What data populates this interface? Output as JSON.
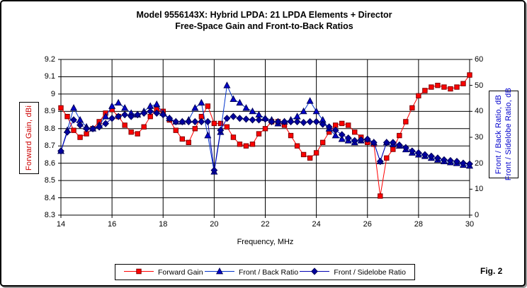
{
  "window": {
    "fig_label": "Fig. 2"
  },
  "chart_data": {
    "type": "line",
    "title": "Model 9556143X:  Hybrid LPDA:  21 LPDA Elements + Director",
    "subtitle": "Free-Space Gain and Front-to-Back Ratios",
    "xlabel": "Frequency, MHz",
    "ylabel_left": "Forward Gain,  dBi",
    "ylabel_right_line1": "Front / Back Ratio, dB",
    "ylabel_right_line2": "Front / Sidelobe Ratio, dB",
    "x_range": [
      14,
      30
    ],
    "y_left_range": [
      8.3,
      9.2
    ],
    "y_right_range": [
      0,
      60
    ],
    "x_ticks": [
      "14",
      "16",
      "18",
      "20",
      "22",
      "24",
      "26",
      "28",
      "30"
    ],
    "y_left_ticks": [
      "9.2",
      "9.1",
      "9",
      "8.9",
      "8.8",
      "8.7",
      "8.6",
      "8.5",
      "8.4",
      "8.3"
    ],
    "y_right_ticks": [
      "60",
      "50",
      "40",
      "30",
      "20",
      "10",
      "0"
    ],
    "grid": true,
    "legend_position": "bottom",
    "x": [
      14,
      14.25,
      14.5,
      14.75,
      15,
      15.25,
      15.5,
      15.75,
      16,
      16.25,
      16.5,
      16.75,
      17,
      17.25,
      17.5,
      17.75,
      18,
      18.25,
      18.5,
      18.75,
      19,
      19.25,
      19.5,
      19.75,
      20,
      20.25,
      20.5,
      20.75,
      21,
      21.25,
      21.5,
      21.75,
      22,
      22.25,
      22.5,
      22.75,
      23,
      23.25,
      23.5,
      23.75,
      24,
      24.25,
      24.5,
      24.75,
      25,
      25.25,
      25.5,
      25.75,
      26,
      26.25,
      26.5,
      26.75,
      27,
      27.25,
      27.5,
      27.75,
      28,
      28.25,
      28.5,
      28.75,
      29,
      29.25,
      29.5,
      29.75,
      30
    ],
    "series": [
      {
        "name": "Forward Gain",
        "axis": "left",
        "marker": "square",
        "line_color": "#ff0000",
        "fill_color": "#ff0000",
        "edge_color": "#7f0000",
        "values": [
          8.92,
          8.87,
          8.79,
          8.75,
          8.77,
          8.8,
          8.84,
          8.89,
          8.91,
          8.87,
          8.82,
          8.78,
          8.77,
          8.81,
          8.87,
          8.91,
          8.9,
          8.85,
          8.79,
          8.74,
          8.72,
          8.8,
          8.87,
          8.93,
          8.83,
          8.83,
          8.81,
          8.75,
          8.71,
          8.7,
          8.71,
          8.77,
          8.8,
          8.84,
          8.84,
          8.82,
          8.76,
          8.7,
          8.65,
          8.63,
          8.66,
          8.72,
          8.78,
          8.82,
          8.83,
          8.82,
          8.78,
          8.75,
          8.72,
          8.71,
          8.41,
          8.63,
          8.68,
          8.76,
          8.84,
          8.92,
          8.99,
          9.02,
          9.04,
          9.05,
          9.04,
          9.03,
          9.04,
          9.06,
          9.11
        ]
      },
      {
        "name": "Front / Back Ratio",
        "axis": "right",
        "marker": "triangle",
        "line_color": "#0033cc",
        "fill_color": "#0000cc",
        "edge_color": "#000055",
        "values": [
          24.7,
          32.7,
          41.3,
          36.7,
          34.0,
          33.3,
          34.7,
          38.0,
          42.0,
          43.3,
          41.3,
          39.3,
          38.7,
          40.0,
          42.0,
          42.7,
          39.3,
          37.3,
          36.0,
          36.0,
          36.7,
          41.3,
          43.3,
          30.7,
          16.7,
          32.0,
          50.0,
          44.7,
          43.3,
          41.3,
          40.0,
          38.7,
          37.3,
          36.7,
          35.3,
          36.0,
          36.7,
          38.0,
          40.0,
          44.0,
          40.0,
          36.7,
          33.3,
          30.7,
          29.3,
          28.7,
          28.0,
          28.7,
          29.3,
          28.0,
          20.7,
          28.0,
          27.3,
          26.7,
          25.3,
          24.0,
          23.3,
          22.7,
          22.0,
          21.3,
          20.7,
          20.3,
          20.0,
          19.3,
          19.0
        ]
      },
      {
        "name": "Front / Sidelobe Ratio",
        "axis": "right",
        "marker": "diamond",
        "line_color": "#0000b3",
        "fill_color": "#0000a0",
        "edge_color": "#000055",
        "values": [
          24.7,
          32.0,
          36.7,
          34.7,
          33.3,
          33.3,
          34.0,
          35.3,
          37.3,
          38.0,
          38.7,
          38.0,
          38.7,
          39.3,
          40.0,
          39.3,
          38.7,
          37.3,
          36.0,
          36.0,
          36.0,
          36.0,
          36.0,
          36.0,
          17.3,
          32.7,
          37.3,
          38.0,
          37.3,
          37.0,
          36.7,
          36.7,
          37.0,
          36.0,
          36.0,
          36.0,
          36.0,
          36.0,
          35.7,
          36.0,
          36.0,
          35.0,
          34.0,
          32.7,
          31.0,
          29.7,
          28.7,
          29.0,
          29.3,
          28.0,
          20.7,
          28.0,
          28.0,
          27.0,
          26.0,
          24.7,
          24.0,
          23.3,
          22.7,
          22.0,
          21.3,
          21.0,
          20.7,
          20.0,
          19.7
        ]
      }
    ]
  }
}
